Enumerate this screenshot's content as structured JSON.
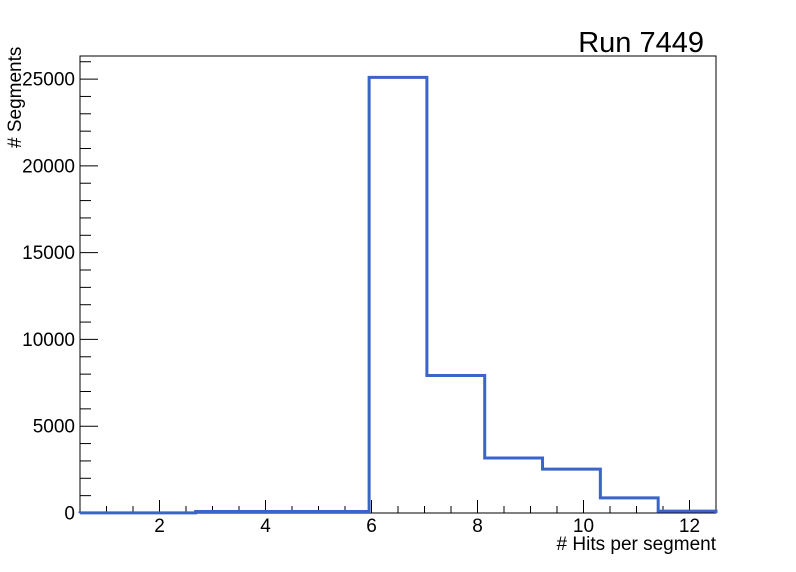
{
  "window": {
    "background": "#ffffff"
  },
  "chart_data": {
    "type": "bar",
    "subtype": "step-histogram",
    "title": "Run 7449",
    "xlabel": "# Hits per segment",
    "ylabel": "# Segments",
    "xlim": [
      0.5,
      12.5
    ],
    "ylim": [
      0,
      26330
    ],
    "grid": false,
    "legend_position": "none",
    "bin_edges": [
      0.5,
      1.591,
      2.682,
      3.773,
      4.864,
      5.955,
      7.045,
      8.136,
      9.227,
      10.318,
      11.409,
      12.5
    ],
    "counts": [
      10,
      10,
      90,
      90,
      90,
      25100,
      7920,
      3170,
      2530,
      870,
      110
    ],
    "x_major_ticks": [
      2,
      4,
      6,
      8,
      10,
      12
    ],
    "x_tick_labels": [
      "2",
      "4",
      "6",
      "8",
      "10",
      "12"
    ],
    "x_minor_step": 0.5,
    "y_major_ticks": [
      0,
      5000,
      10000,
      15000,
      20000,
      25000
    ],
    "y_tick_labels": [
      "0",
      "5000",
      "10000",
      "15000",
      "20000",
      "25000"
    ],
    "y_minor_step": 1000,
    "line_color": "#3b64c8",
    "frame_color": "#000000"
  }
}
